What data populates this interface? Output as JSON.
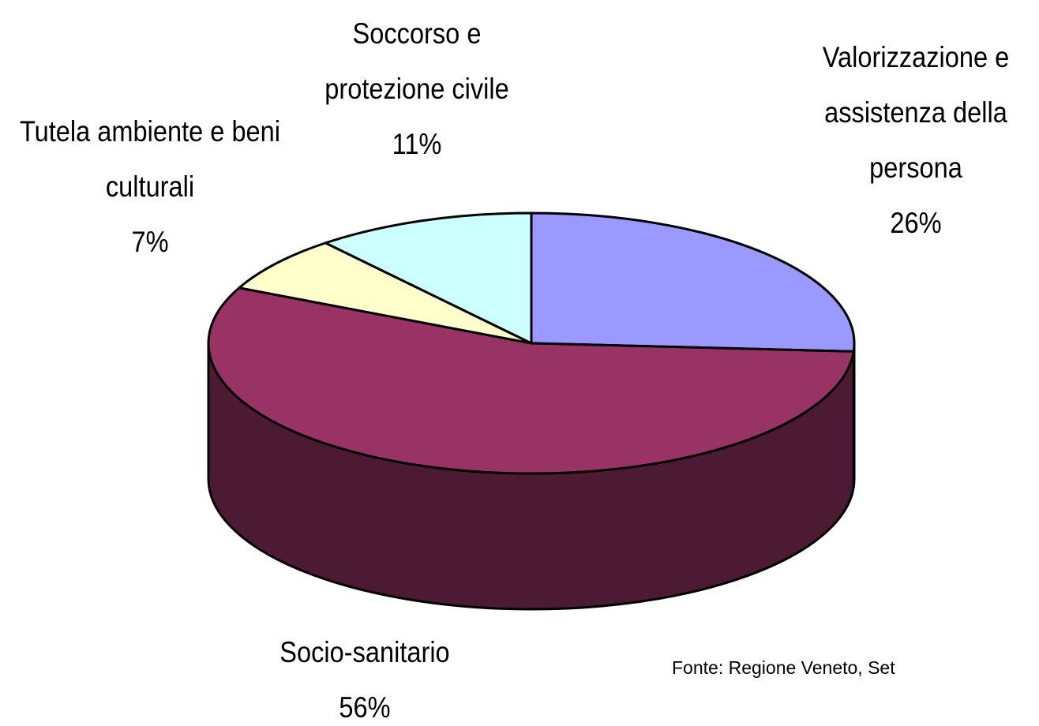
{
  "chart_data": {
    "type": "pie3d",
    "categories": [
      "Valorizzazione e assistenza della persona",
      "Socio-sanitario",
      "Tutela ambiente e beni culturali",
      "Soccorso e protezione civile"
    ],
    "values": [
      26,
      56,
      7,
      11
    ],
    "value_labels": [
      "26%",
      "56%",
      "7%",
      "11%"
    ],
    "colors": [
      "#9999ff",
      "#993366",
      "#ffffcc",
      "#ccffff"
    ],
    "source": "Fonte: Regione Veneto, Set"
  }
}
